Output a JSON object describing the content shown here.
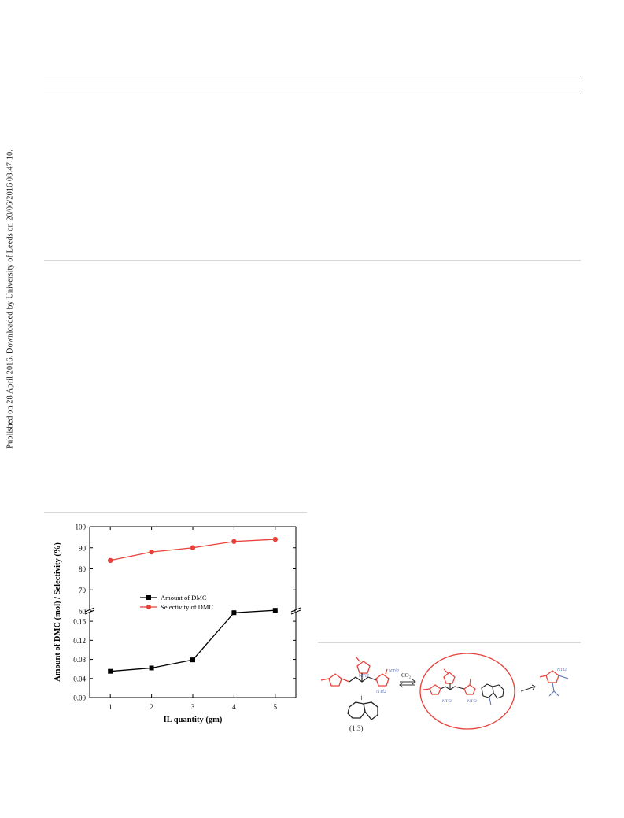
{
  "side_note": "Published on 28 April 2016. Downloaded by University of Leeds on 20/06/2016 08:47:10.",
  "chart_data": {
    "type": "line",
    "xlabel": "IL quantity (gm)",
    "ylabel": "Amount of DMC (mol) / Selectivity (%)",
    "x": [
      1,
      2,
      3,
      4,
      5
    ],
    "x_ticks": [
      "1",
      "2",
      "3",
      "4",
      "5"
    ],
    "axis_break": true,
    "y_upper": {
      "ylim": [
        60,
        100
      ],
      "ticks": [
        "60",
        "70",
        "80",
        "90",
        "100"
      ]
    },
    "y_lower": {
      "ylim": [
        0,
        0.18
      ],
      "ticks": [
        "0.00",
        "0.04",
        "0.08",
        "0.12",
        "0.16"
      ]
    },
    "series": [
      {
        "name": "Amount of DMC",
        "axis": "lower",
        "marker": "square",
        "color": "#000000",
        "values": [
          0.055,
          0.062,
          0.079,
          0.178,
          0.183
        ]
      },
      {
        "name": "Selectivity of DMC",
        "axis": "upper",
        "marker": "circle",
        "color": "#e8403a",
        "values": [
          84,
          88,
          90,
          93,
          94
        ]
      }
    ],
    "legend_position": "middle-left",
    "grid": false
  },
  "scheme": {
    "anion_label": "NTf2",
    "co2_label": "CO₂",
    "ratio_label": "(1:3)",
    "plus_label": "+"
  }
}
